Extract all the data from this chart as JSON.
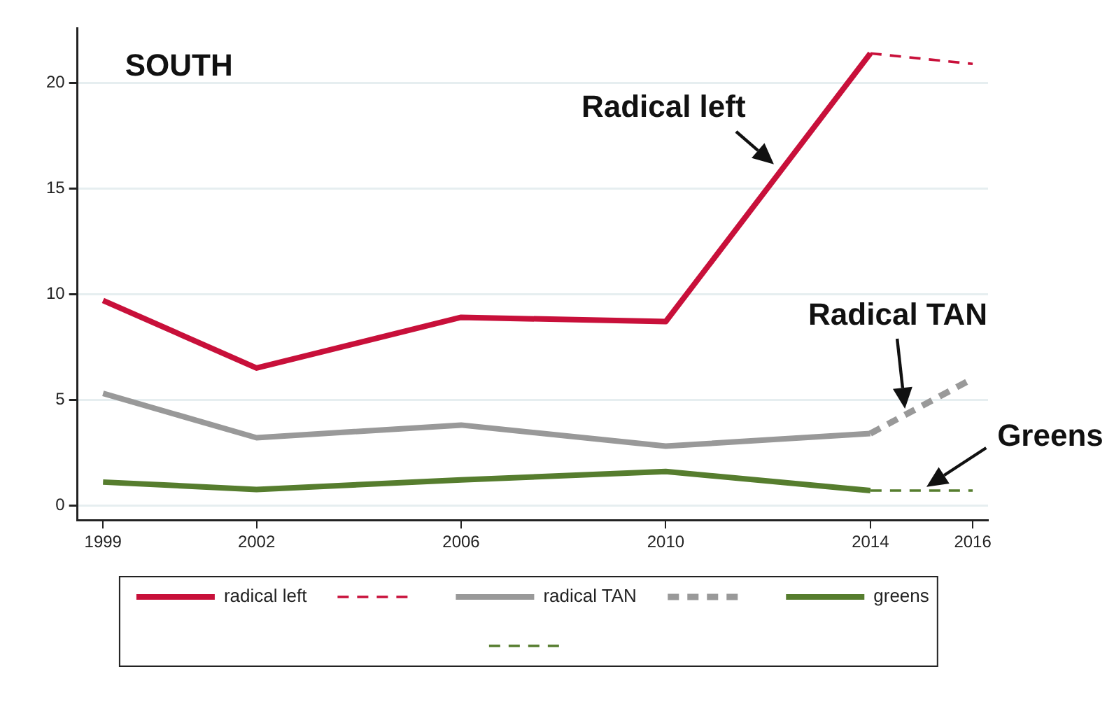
{
  "chart_data": {
    "type": "line",
    "x": [
      1999,
      2002,
      2006,
      2010,
      2014,
      2016
    ],
    "xlim": [
      1998.5,
      2016.3
    ],
    "xticks": [
      1999,
      2002,
      2006,
      2010,
      2014,
      2016
    ],
    "ylim": [
      -0.7,
      22.6
    ],
    "yticks": [
      0,
      5,
      10,
      15,
      20
    ],
    "grid": "y",
    "legend": "bottom",
    "series": [
      {
        "name": "radical left",
        "color": "#c8103a",
        "line_style": "solid",
        "values": [
          9.7,
          6.5,
          8.9,
          8.7,
          21.4,
          null
        ]
      },
      {
        "name": "radical TAN",
        "color": "#999999",
        "line_style": "solid",
        "values": [
          5.3,
          3.2,
          3.8,
          2.8,
          3.4,
          null
        ]
      },
      {
        "name": "greens",
        "color": "#567d2e",
        "line_style": "solid",
        "values": [
          1.1,
          0.75,
          1.2,
          1.6,
          0.7,
          null
        ]
      },
      {
        "color": "#c8103a",
        "line_style": "dashed",
        "values": [
          null,
          null,
          null,
          null,
          21.4,
          20.9
        ]
      },
      {
        "color": "#999999",
        "line_style": "dashed",
        "values": [
          null,
          null,
          null,
          null,
          3.4,
          6.0
        ]
      },
      {
        "color": "#567d2e",
        "line_style": "dashed",
        "values": [
          null,
          null,
          null,
          null,
          0.7,
          0.7
        ]
      }
    ],
    "annotations": [
      "SOUTH",
      {
        "text": "Radical left",
        "x": 2012.2,
        "y": 16
      },
      {
        "text": "Radical TAN",
        "x": 2014.7,
        "y": 4.3
      },
      {
        "text": "Greens",
        "x": 2015,
        "y": 0.7
      }
    ]
  }
}
